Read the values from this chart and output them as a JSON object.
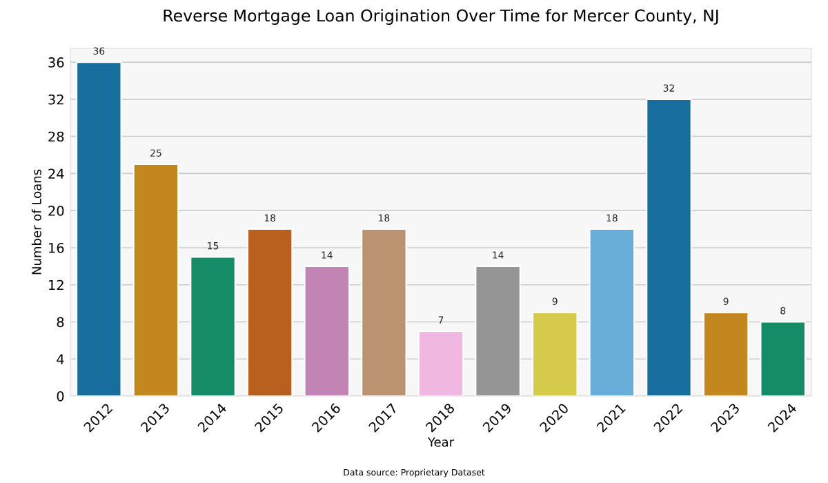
{
  "chart_data": {
    "type": "bar",
    "title": "Reverse Mortgage Loan Origination Over Time for Mercer County, NJ",
    "xlabel": "Year",
    "ylabel": "Number of Loans",
    "categories": [
      "2012",
      "2013",
      "2014",
      "2015",
      "2016",
      "2017",
      "2018",
      "2019",
      "2020",
      "2021",
      "2022",
      "2023",
      "2024"
    ],
    "values": [
      36,
      25,
      15,
      18,
      14,
      18,
      7,
      14,
      9,
      18,
      32,
      9,
      8
    ],
    "colors": [
      "#176d9c",
      "#c3871f",
      "#168b68",
      "#b8601e",
      "#c283b5",
      "#bc9370",
      "#f0b8e0",
      "#959595",
      "#d6ca4c",
      "#67afd9",
      "#176d9c",
      "#c3871f",
      "#168b68"
    ],
    "ylim": [
      0,
      37.5
    ],
    "yticks": [
      0,
      4,
      8,
      12,
      16,
      20,
      24,
      28,
      32,
      36
    ],
    "grid": "y",
    "data_labels": true,
    "legend": false,
    "annotations": [
      "Data source: Proprietary Dataset"
    ]
  }
}
